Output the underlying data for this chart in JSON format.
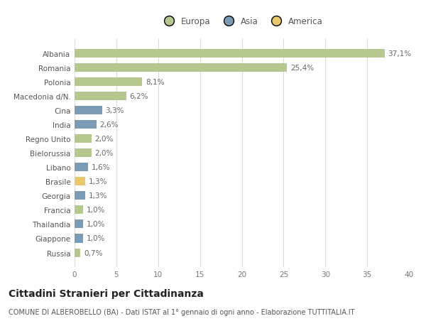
{
  "countries": [
    "Albania",
    "Romania",
    "Polonia",
    "Macedonia d/N.",
    "Cina",
    "India",
    "Regno Unito",
    "Bielorussia",
    "Libano",
    "Brasile",
    "Georgia",
    "Francia",
    "Thailandia",
    "Giappone",
    "Russia"
  ],
  "values": [
    37.1,
    25.4,
    8.1,
    6.2,
    3.3,
    2.6,
    2.0,
    2.0,
    1.6,
    1.3,
    1.3,
    1.0,
    1.0,
    1.0,
    0.7
  ],
  "labels": [
    "37,1%",
    "25,4%",
    "8,1%",
    "6,2%",
    "3,3%",
    "2,6%",
    "2,0%",
    "2,0%",
    "1,6%",
    "1,3%",
    "1,3%",
    "1,0%",
    "1,0%",
    "1,0%",
    "0,7%"
  ],
  "continents": [
    "Europa",
    "Europa",
    "Europa",
    "Europa",
    "Asia",
    "Asia",
    "Europa",
    "Europa",
    "Asia",
    "America",
    "Asia",
    "Europa",
    "Asia",
    "Asia",
    "Europa"
  ],
  "colors": {
    "Europa": "#b5c98e",
    "Asia": "#7b9bb5",
    "America": "#e8c96e"
  },
  "legend_entries": [
    "Europa",
    "Asia",
    "America"
  ],
  "legend_colors": [
    "#b5c98e",
    "#7b9bb5",
    "#e8c96e"
  ],
  "title": "Cittadini Stranieri per Cittadinanza",
  "subtitle": "COMUNE DI ALBEROBELLO (BA) - Dati ISTAT al 1° gennaio di ogni anno - Elaborazione TUTTITALIA.IT",
  "xlim": [
    0,
    40
  ],
  "xticks": [
    0,
    5,
    10,
    15,
    20,
    25,
    30,
    35,
    40
  ],
  "background_color": "#ffffff",
  "grid_color": "#dddddd",
  "bar_height": 0.6,
  "label_fontsize": 7.5,
  "title_fontsize": 10,
  "subtitle_fontsize": 7.0,
  "tick_fontsize": 7.5,
  "legend_fontsize": 8.5
}
